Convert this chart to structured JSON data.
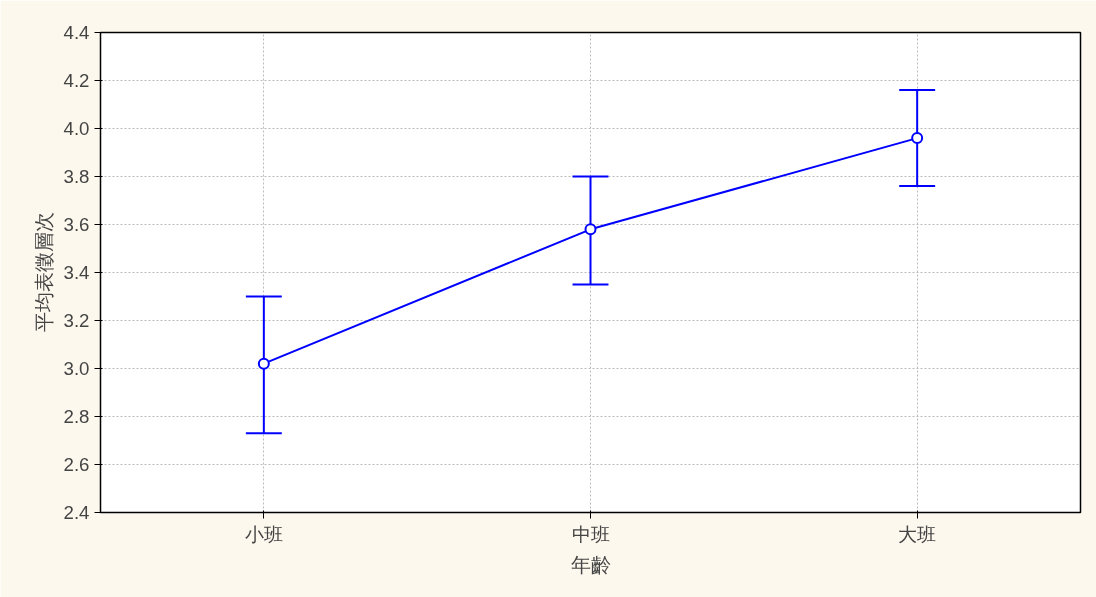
{
  "chart_data": {
    "type": "line",
    "xlabel": "年齡",
    "ylabel": "平均表徵層次",
    "categories": [
      "小班",
      "中班",
      "大班"
    ],
    "series": [
      {
        "color": "#0000ff",
        "values": [
          3.02,
          3.58,
          3.96
        ],
        "errors": [
          [
            2.73,
            3.3
          ],
          [
            3.35,
            3.8
          ],
          [
            3.76,
            4.16
          ]
        ]
      }
    ],
    "ylim": [
      2.4,
      4.4
    ],
    "yticks": [
      2.4,
      2.6,
      2.8,
      {
        "value": 3,
        "label": "3.0"
      },
      3.2,
      3.4,
      3.6,
      3.8,
      {
        "value": 4,
        "label": "4.0"
      },
      4.2,
      4.4
    ],
    "grid": true,
    "marker": "circle",
    "line_style": "solid"
  }
}
